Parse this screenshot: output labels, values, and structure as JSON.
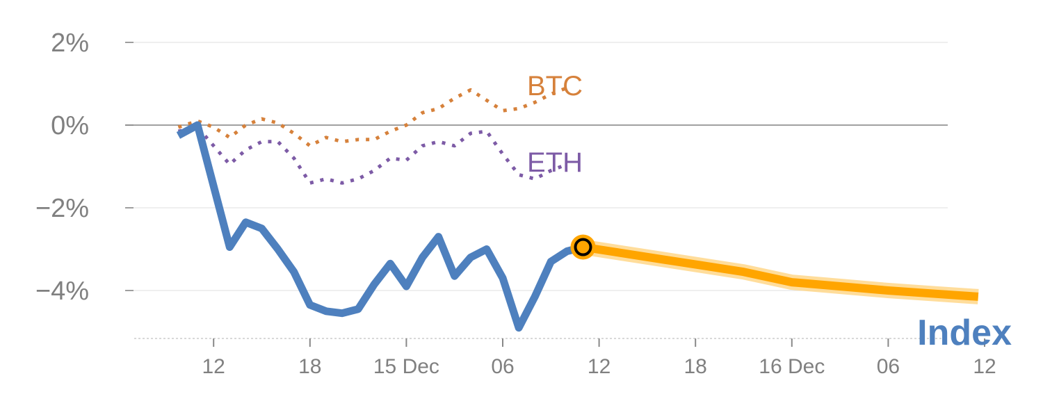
{
  "chart_data": {
    "type": "line",
    "title": "",
    "xlabel": "",
    "ylabel": "",
    "ylim": [
      -5.1,
      2.4
    ],
    "xlim": [
      0,
      50
    ],
    "grid": true,
    "y_ticks": [
      {
        "value": 2,
        "label": "2%"
      },
      {
        "value": 0,
        "label": "0%"
      },
      {
        "value": -2,
        "label": "−2%"
      },
      {
        "value": -4,
        "label": "−4%"
      }
    ],
    "x_ticks": [
      {
        "x": 2,
        "label": "12"
      },
      {
        "x": 8,
        "label": "18"
      },
      {
        "x": 14,
        "label": "15 Dec"
      },
      {
        "x": 20,
        "label": "06"
      },
      {
        "x": 26,
        "label": "12"
      },
      {
        "x": 32,
        "label": "18"
      },
      {
        "x": 38,
        "label": "16 Dec"
      },
      {
        "x": 44,
        "label": "06"
      },
      {
        "x": 50,
        "label": "12"
      }
    ],
    "series": [
      {
        "name": "BTC",
        "style": "dotted",
        "color": "#D6813B",
        "x": [
          -0.2,
          1,
          2,
          3,
          4,
          5,
          6,
          7,
          8,
          9,
          10,
          11,
          12,
          13,
          14,
          15,
          16,
          17,
          18,
          19,
          20,
          21,
          22,
          23,
          24
        ],
        "y": [
          -0.05,
          0.1,
          -0.05,
          -0.3,
          0.0,
          0.15,
          0.05,
          -0.2,
          -0.5,
          -0.3,
          -0.4,
          -0.35,
          -0.35,
          -0.15,
          0.0,
          0.3,
          0.4,
          0.65,
          0.85,
          0.6,
          0.35,
          0.4,
          0.55,
          0.75,
          0.9
        ]
      },
      {
        "name": "ETH",
        "style": "dotted",
        "color": "#7D5BA6",
        "x": [
          -0.2,
          1,
          2,
          3,
          4,
          5,
          6,
          7,
          8,
          9,
          10,
          11,
          12,
          13,
          14,
          15,
          16,
          17,
          18,
          19,
          20,
          21,
          22,
          23,
          24
        ],
        "y": [
          -0.15,
          -0.05,
          -0.5,
          -0.95,
          -0.6,
          -0.4,
          -0.4,
          -0.8,
          -1.4,
          -1.3,
          -1.4,
          -1.3,
          -1.1,
          -0.8,
          -0.85,
          -0.5,
          -0.4,
          -0.5,
          -0.2,
          -0.15,
          -0.7,
          -1.2,
          -1.3,
          -1.1,
          -0.95
        ]
      },
      {
        "name": "Index",
        "style": "solid",
        "color": "#4E80BE",
        "x": [
          -0.2,
          1,
          3,
          4,
          5,
          6,
          7,
          8,
          9,
          10,
          11,
          12,
          13,
          14,
          15,
          16,
          17,
          18,
          19,
          20,
          21,
          22,
          23,
          24,
          25
        ],
        "y": [
          -0.25,
          0.0,
          -2.95,
          -2.35,
          -2.5,
          -3.0,
          -3.55,
          -4.35,
          -4.5,
          -4.55,
          -4.45,
          -3.85,
          -3.35,
          -3.9,
          -3.2,
          -2.7,
          -3.65,
          -3.2,
          -3.0,
          -3.7,
          -4.9,
          -4.15,
          -3.3,
          -3.05,
          -2.95
        ]
      },
      {
        "name": "Index forecast",
        "style": "band",
        "color": "#FFA500",
        "x": [
          25,
          30,
          35,
          38,
          41,
          44,
          47,
          49.6
        ],
        "y": [
          -2.95,
          -3.25,
          -3.55,
          -3.8,
          -3.9,
          -4.0,
          -4.08,
          -4.15
        ]
      }
    ],
    "marker": {
      "x": 25,
      "y": -2.95,
      "fill": "#FFA500",
      "ring": "#000000"
    },
    "labels": {
      "btc": "BTC",
      "eth": "ETH",
      "index": "Index"
    },
    "colors": {
      "grid": "#e5e5e5",
      "zero_line": "#808080",
      "tick_text": "#808080",
      "forecast_halo": "#FFD78A"
    }
  }
}
